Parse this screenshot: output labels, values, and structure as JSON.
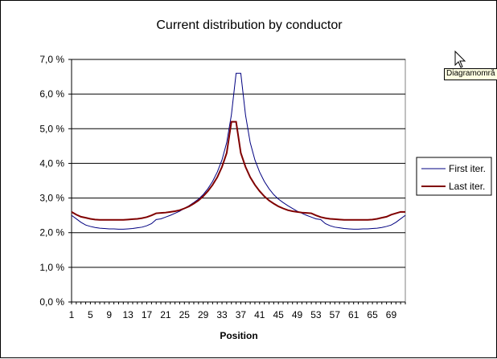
{
  "chart_data": {
    "type": "line",
    "title": "Current distribution by conductor",
    "xlabel": "Position",
    "ylabel": "",
    "ylim": [
      0,
      0.07
    ],
    "y_ticks": [
      "0,0 %",
      "1,0 %",
      "2,0 %",
      "3,0 %",
      "4,0 %",
      "5,0 %",
      "6,0 %",
      "7,0 %"
    ],
    "x_tick_labels": [
      "1",
      "5",
      "9",
      "13",
      "17",
      "21",
      "25",
      "29",
      "33",
      "37",
      "41",
      "45",
      "49",
      "53",
      "57",
      "61",
      "65",
      "69"
    ],
    "x": [
      1,
      2,
      3,
      4,
      5,
      6,
      7,
      8,
      9,
      10,
      11,
      12,
      13,
      14,
      15,
      16,
      17,
      18,
      19,
      20,
      21,
      22,
      23,
      24,
      25,
      26,
      27,
      28,
      29,
      30,
      31,
      32,
      33,
      34,
      35,
      36,
      37,
      38,
      39,
      40,
      41,
      42,
      43,
      44,
      45,
      46,
      47,
      48,
      49,
      50,
      51,
      52,
      53,
      54,
      55,
      56,
      57,
      58,
      59,
      60,
      61,
      62,
      63,
      64,
      65,
      66,
      67,
      68,
      69,
      70,
      71,
      72
    ],
    "grid": true,
    "legend_position": "right",
    "series": [
      {
        "name": "First iter.",
        "color": "#000080",
        "values": [
          0.025,
          0.024,
          0.023,
          0.0222,
          0.0218,
          0.0215,
          0.0213,
          0.0212,
          0.0211,
          0.0211,
          0.021,
          0.021,
          0.0211,
          0.0212,
          0.0214,
          0.0216,
          0.022,
          0.0226,
          0.0238,
          0.024,
          0.0245,
          0.025,
          0.0256,
          0.0262,
          0.027,
          0.0278,
          0.0287,
          0.0297,
          0.031,
          0.0327,
          0.0348,
          0.0375,
          0.041,
          0.046,
          0.054,
          0.066,
          0.066,
          0.054,
          0.046,
          0.041,
          0.0375,
          0.0348,
          0.0327,
          0.031,
          0.0297,
          0.0287,
          0.0278,
          0.027,
          0.0262,
          0.0256,
          0.025,
          0.0245,
          0.024,
          0.0238,
          0.0226,
          0.022,
          0.0216,
          0.0214,
          0.0212,
          0.0211,
          0.021,
          0.021,
          0.0211,
          0.0211,
          0.0212,
          0.0213,
          0.0215,
          0.0218,
          0.0222,
          0.023,
          0.024,
          0.025
        ]
      },
      {
        "name": "Last iter.",
        "color": "#800000",
        "values": [
          0.026,
          0.0252,
          0.0246,
          0.0243,
          0.024,
          0.0238,
          0.0237,
          0.0237,
          0.0237,
          0.0237,
          0.0237,
          0.0237,
          0.0238,
          0.0239,
          0.024,
          0.0242,
          0.0245,
          0.025,
          0.0256,
          0.0257,
          0.0258,
          0.026,
          0.0262,
          0.0265,
          0.027,
          0.0276,
          0.0284,
          0.0293,
          0.0305,
          0.032,
          0.0338,
          0.036,
          0.039,
          0.043,
          0.052,
          0.052,
          0.043,
          0.039,
          0.036,
          0.0338,
          0.032,
          0.0305,
          0.0293,
          0.0284,
          0.0276,
          0.027,
          0.0265,
          0.0262,
          0.026,
          0.0258,
          0.0257,
          0.0256,
          0.025,
          0.0245,
          0.0242,
          0.024,
          0.0239,
          0.0238,
          0.0237,
          0.0237,
          0.0237,
          0.0237,
          0.0237,
          0.0237,
          0.0238,
          0.024,
          0.0243,
          0.0246,
          0.0252,
          0.0256,
          0.026,
          0.026
        ]
      }
    ]
  },
  "tooltip": {
    "text": "Diagramområ"
  },
  "cursor": {
    "icon": "mouse-pointer-icon"
  }
}
